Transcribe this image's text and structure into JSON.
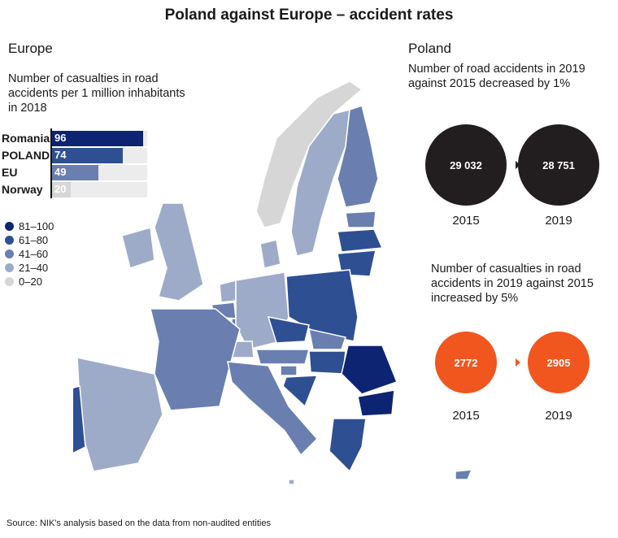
{
  "title": "Poland against Europe – accident rates",
  "europe": {
    "heading": "Europe",
    "subtitle": "Number of casualties in road accidents per 1 million inhabitants in 2018"
  },
  "chart_data": {
    "type": "bar",
    "orientation": "horizontal",
    "categories": [
      "Romania",
      "POLAND",
      "EU",
      "Norway"
    ],
    "values": [
      96,
      74,
      49,
      20
    ],
    "colors": [
      "#0d2473",
      "#2f4f93",
      "#6a7fb0",
      "#d6d6d6"
    ],
    "xlim": [
      0,
      100
    ],
    "legend": [
      {
        "label": "81–100",
        "color": "#0d2473"
      },
      {
        "label": "61–80",
        "color": "#2f4f93"
      },
      {
        "label": "41–60",
        "color": "#6a7fb0"
      },
      {
        "label": "21–40",
        "color": "#9eabc8"
      },
      {
        "label": "0–20",
        "color": "#d6d6d6"
      }
    ],
    "map_categories": {
      "Romania": "81–100",
      "Bulgaria": "81–100",
      "Latvia": "61–80",
      "Lithuania": "61–80",
      "Poland": "61–80",
      "Portugal": "61–80",
      "Croatia": "61–80",
      "Greece": "61–80",
      "Czechia": "61–80",
      "Hungary": "61–80",
      "Finland": "41–60",
      "France": "41–60",
      "Italy": "41–60",
      "Belgium": "41–60",
      "Austria": "41–60",
      "Slovakia": "41–60",
      "Estonia": "41–60",
      "Luxembourg": "41–60",
      "Cyprus": "41–60",
      "Slovenia": "41–60",
      "Spain": "21–40",
      "Germany": "21–40",
      "Sweden": "21–40",
      "Ireland": "21–40",
      "United Kingdom": "21–40",
      "Denmark": "21–40",
      "Netherlands": "21–40",
      "Switzerland": "21–40",
      "Norway": "0–20",
      "Malta": "21–40"
    }
  },
  "poland": {
    "heading": "Poland",
    "accidents_text": "Number of road accidents in 2019 against 2015 decreased by 1%",
    "accidents": [
      {
        "year": "2015",
        "value": "29 032"
      },
      {
        "year": "2019",
        "value": "28 751"
      }
    ],
    "casualties_text": "Number of casualties in road accidents in 2019 against 2015 increased by 5%",
    "casualties": [
      {
        "year": "2015",
        "value": "2772"
      },
      {
        "year": "2019",
        "value": "2905"
      }
    ],
    "accidents_color": "#221e1f",
    "casualties_color": "#f0561e"
  },
  "source": "Source: NIK's analysis based on the data from non-audited entities"
}
